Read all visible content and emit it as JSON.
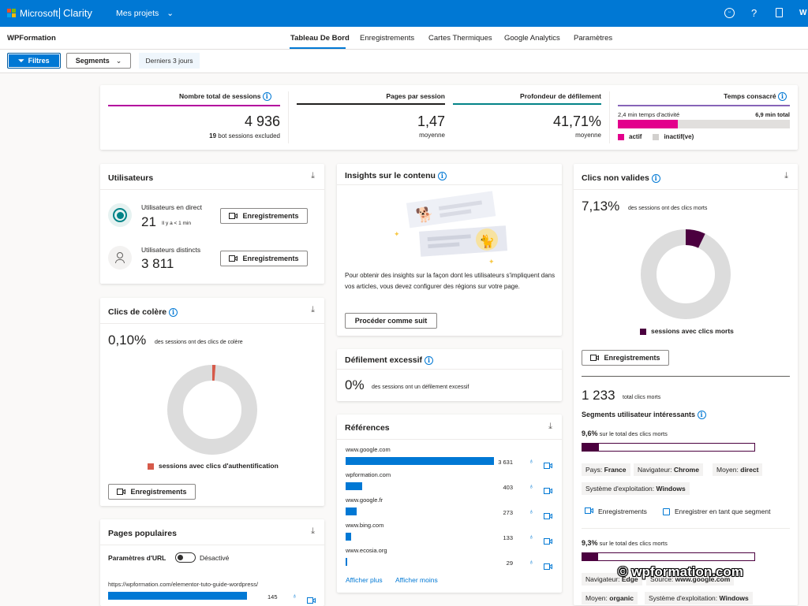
{
  "topbar": {
    "brand_company": "Microsoft",
    "brand_product": "Clarity",
    "projects_label": "Mes projets",
    "user_initial": "W"
  },
  "subnav": {
    "project_name": "WPFormation",
    "tabs": [
      {
        "label": "Tableau De Bord",
        "active": true
      },
      {
        "label": "Enregistrements"
      },
      {
        "label": "Cartes Thermiques"
      },
      {
        "label": "Google Analytics"
      },
      {
        "label": "Paramètres"
      }
    ]
  },
  "filterbar": {
    "filters_label": "Filtres",
    "segments_label": "Segments",
    "period_label": "Derniers 3 jours"
  },
  "stats": {
    "sessions": {
      "title": "Nombre total de sessions",
      "value": "4 936",
      "bot_count": "19",
      "bot_label": "bot sessions excluded"
    },
    "pages": {
      "title": "Pages par session",
      "value": "1,47",
      "sub": "moyenne"
    },
    "scroll": {
      "title": "Profondeur de défilement",
      "value": "41,71%",
      "sub": "moyenne"
    },
    "time": {
      "title": "Temps consacré",
      "active_label": "2,4 min temps d'activité",
      "total_label": "6,9 min total",
      "active_fraction": 0.35,
      "legend_active": "actif",
      "legend_inactive": "inactif(ve)"
    }
  },
  "users": {
    "title": "Utilisateurs",
    "live_label": "Utilisateurs en direct",
    "live_value": "21",
    "live_sub": "Il y a < 1 min",
    "distinct_label": "Utilisateurs distincts",
    "distinct_value": "3 811",
    "rec_label": "Enregistrements"
  },
  "rage": {
    "title": "Clics de colère",
    "pct": "0,10%",
    "desc": "des sessions ont des clics de colère",
    "fraction": 0.001,
    "legend": "sessions avec clics d'authentification",
    "rec_label": "Enregistrements"
  },
  "popular": {
    "title": "Pages populaires",
    "param_label": "Paramètres d'URL",
    "toggle_state": "Désactivé",
    "rows": [
      {
        "url": "https://wpformation.com/elementor-tuto-guide-wordpress/",
        "count": "145",
        "fraction": 0.9
      }
    ]
  },
  "insights": {
    "title": "Insights sur le contenu",
    "text": "Pour obtenir des insights sur la façon dont les utilisateurs s'impliquent dans vos articles, vous devez configurer des régions sur votre page.",
    "button": "Procéder comme suit"
  },
  "excess": {
    "title": "Défilement excessif",
    "pct": "0%",
    "desc": "des sessions ont un défilement excessif"
  },
  "refs": {
    "title": "Références",
    "rows": [
      {
        "domain": "www.google.com",
        "count": "3 631",
        "value": 3631
      },
      {
        "domain": "wpformation.com",
        "count": "403",
        "value": 403
      },
      {
        "domain": "www.google.fr",
        "count": "273",
        "value": 273
      },
      {
        "domain": "www.bing.com",
        "count": "133",
        "value": 133
      },
      {
        "domain": "www.ecosia.org",
        "count": "29",
        "value": 29
      }
    ],
    "more": "Afficher plus",
    "less": "Afficher moins"
  },
  "dead": {
    "title": "Clics non valides",
    "pct": "7,13%",
    "desc": "des sessions ont des clics morts",
    "fraction": 0.0713,
    "legend": "sessions avec clics morts",
    "rec_label": "Enregistrements",
    "total_value": "1 233",
    "total_label": "total clics morts",
    "segments_title": "Segments utilisateur intéressants",
    "seg1": {
      "pct": "9,6%",
      "label": "sur le total des clics morts",
      "fraction": 0.096,
      "tags": [
        {
          "k": "Pays:",
          "v": "France"
        },
        {
          "k": "Navigateur:",
          "v": "Chrome"
        },
        {
          "k": "Moyen:",
          "v": "direct"
        },
        {
          "k": "Système d'exploitation:",
          "v": "Windows"
        }
      ]
    },
    "seg_rec": "Enregistrements",
    "seg_save": "Enregistrer en tant que segment",
    "seg2": {
      "pct": "9,3%",
      "label": "sur le total des clics morts",
      "fraction": 0.093,
      "tags": [
        {
          "k": "Navigateur:",
          "v": "Edge"
        },
        {
          "k": "Source:",
          "v": "www.google.com"
        },
        {
          "k": "Moyen:",
          "v": "organic"
        },
        {
          "k": "Système d'exploitation:",
          "v": "Windows"
        }
      ]
    }
  },
  "watermark": "© wpformation.com",
  "colors": {
    "brand": "#0078d4",
    "magenta": "#e3008c",
    "dead": "#4b003f",
    "rage": "#d65a4a",
    "donut_bg": "#dcdcdc"
  }
}
